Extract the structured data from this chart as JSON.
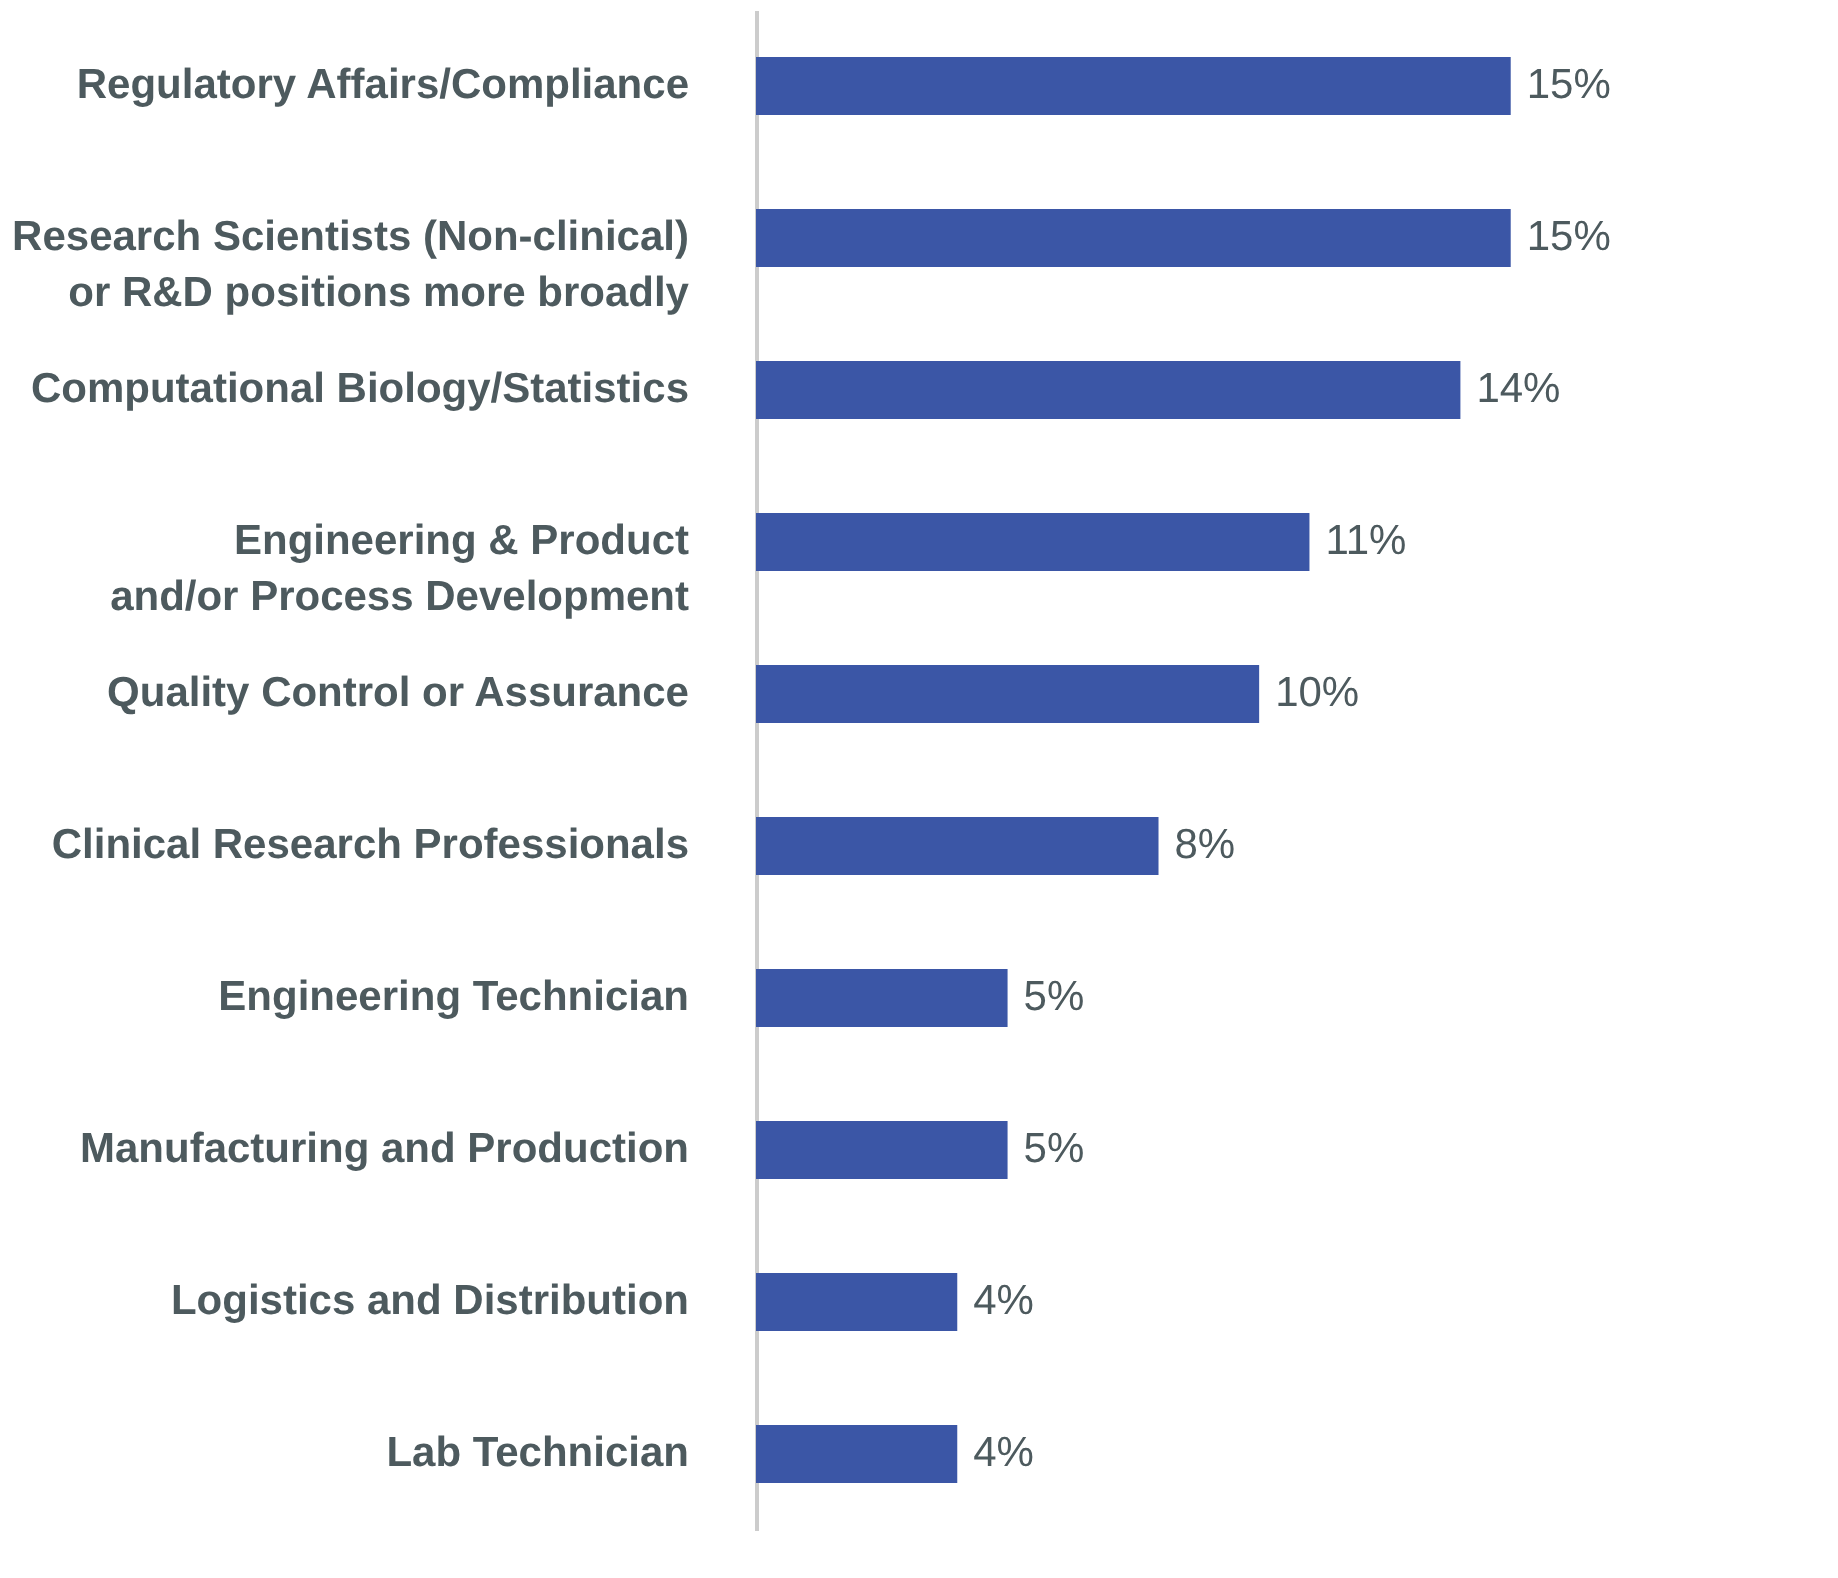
{
  "chart_data": {
    "type": "bar",
    "orientation": "horizontal",
    "categories": [
      "Regulatory Affairs/Compliance",
      "Research Scientists (Non-clinical)\nor R&D positions more broadly",
      "Computational Biology/Statistics",
      "Engineering & Product\nand/or Process Development",
      "Quality Control or Assurance",
      "Clinical Research Professionals",
      "Engineering Technician",
      "Manufacturing and Production",
      "Logistics and Distribution",
      "Lab Technician"
    ],
    "values": [
      15,
      15,
      14,
      11,
      10,
      8,
      5,
      5,
      4,
      4
    ],
    "value_labels": [
      "15%",
      "15%",
      "14%",
      "11%",
      "10%",
      "8%",
      "5%",
      "5%",
      "4%",
      "4%"
    ],
    "color": "#3b56a6",
    "tick_labels": "y"
  }
}
